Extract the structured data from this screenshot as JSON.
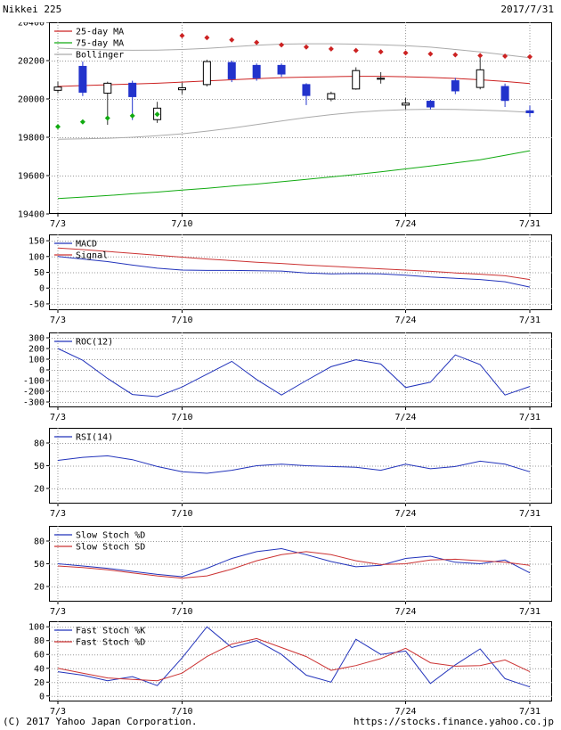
{
  "header": {
    "title": "Nikkei 225",
    "date": "2017/7/31"
  },
  "footer": {
    "copyright": "(C) 2017 Yahoo Japan Corporation.",
    "url": "https://stocks.finance.yahoo.co.jp"
  },
  "colors": {
    "up_candle": "#ffffff",
    "down_candle": "#2233cc",
    "blue_line": "#2233bb",
    "red_line": "#cc3333",
    "ma25": "#cc2222",
    "ma75": "#11aa11",
    "bollinger": "#aaaaaa",
    "grid": "#999999"
  },
  "chart_data": [
    {
      "type": "candlestick",
      "name": "price",
      "ylim": [
        19400,
        20400
      ],
      "yticks": [
        20400,
        20200,
        20000,
        19800,
        19600,
        19400
      ],
      "x_tick_labels": [
        "7/3",
        "7/10",
        "7/24",
        "7/31"
      ],
      "x_tick_days": [
        0,
        5,
        14,
        19
      ],
      "dates": [
        "7/3",
        "7/4",
        "7/5",
        "7/6",
        "7/7",
        "7/10",
        "7/11",
        "7/12",
        "7/13",
        "7/14",
        "7/18",
        "7/19",
        "7/20",
        "7/21",
        "7/24",
        "7/25",
        "7/26",
        "7/27",
        "7/28",
        "7/31"
      ],
      "down_color": "#2233cc",
      "up_color": "#ffffff",
      "ohlc": [
        [
          20045,
          20090,
          20030,
          20062
        ],
        [
          20170,
          20195,
          20015,
          20035
        ],
        [
          20030,
          20090,
          19865,
          20082
        ],
        [
          20082,
          20095,
          19890,
          20012
        ],
        [
          19892,
          19985,
          19875,
          19952
        ],
        [
          20048,
          20085,
          20025,
          20058
        ],
        [
          20075,
          20205,
          20065,
          20195
        ],
        [
          20190,
          20200,
          20088,
          20105
        ],
        [
          20175,
          20185,
          20095,
          20110
        ],
        [
          20175,
          20185,
          20115,
          20130
        ],
        [
          20075,
          20082,
          19968,
          20018
        ],
        [
          20000,
          20038,
          19988,
          20028
        ],
        [
          20052,
          20165,
          20048,
          20148
        ],
        [
          20103,
          20140,
          20080,
          20108
        ],
        [
          19968,
          20005,
          19945,
          19978
        ],
        [
          19988,
          19995,
          19945,
          19958
        ],
        [
          20095,
          20110,
          20025,
          20042
        ],
        [
          20060,
          20215,
          20050,
          20152
        ],
        [
          20065,
          20080,
          19958,
          19992
        ],
        [
          19938,
          19965,
          19905,
          19928
        ]
      ],
      "series": [
        {
          "name": "25-day MA",
          "color": "#cc2222",
          "values": [
            20065,
            20070,
            20074,
            20078,
            20082,
            20088,
            20094,
            20100,
            20106,
            20111,
            20114,
            20116,
            20118,
            20118,
            20116,
            20112,
            20107,
            20100,
            20091,
            20080
          ]
        },
        {
          "name": "75-day MA",
          "color": "#11aa11",
          "values": [
            19480,
            19488,
            19496,
            19505,
            19514,
            19524,
            19534,
            19545,
            19556,
            19568,
            19580,
            19593,
            19606,
            19620,
            19635,
            19650,
            19666,
            19683,
            19706,
            19730
          ]
        },
        {
          "name": "Bollinger",
          "color": "#aaaaaa",
          "upper": [
            20265,
            20260,
            20256,
            20254,
            20255,
            20258,
            20264,
            20272,
            20280,
            20286,
            20288,
            20288,
            20286,
            20283,
            20278,
            20270,
            20258,
            20245,
            20230,
            20215
          ],
          "lower": [
            19790,
            19792,
            19795,
            19800,
            19808,
            19818,
            19832,
            19848,
            19866,
            19885,
            19903,
            19918,
            19930,
            19939,
            19944,
            19946,
            19945,
            19942,
            19937,
            19930
          ]
        }
      ],
      "psar": {
        "up": {
          "start_day": 0,
          "color": "#11aa11",
          "values": [
            19855,
            19880,
            19900,
            19912,
            19920
          ]
        },
        "down": {
          "start_day": 5,
          "color": "#cc2222",
          "values": [
            20330,
            20320,
            20308,
            20295,
            20282,
            20271,
            20261,
            20253,
            20246,
            20240,
            20235,
            20230,
            20226,
            20223,
            20220
          ]
        }
      }
    },
    {
      "type": "line",
      "name": "macd",
      "ylim": [
        -70,
        170
      ],
      "yticks": [
        150,
        100,
        50,
        0,
        -50
      ],
      "x_tick_labels": [
        "7/3",
        "7/10",
        "7/24",
        "7/31"
      ],
      "x_tick_days": [
        0,
        5,
        14,
        19
      ],
      "series": [
        {
          "name": "MACD",
          "color": "#2233bb",
          "values": [
            100,
            92,
            84,
            73,
            63,
            57,
            56,
            56,
            55,
            54,
            48,
            45,
            46,
            45,
            41,
            35,
            31,
            27,
            20,
            3
          ]
        },
        {
          "name": "Signal",
          "color": "#cc3333",
          "values": [
            127,
            122,
            116,
            110,
            104,
            98,
            92,
            87,
            82,
            78,
            73,
            69,
            65,
            61,
            57,
            53,
            48,
            44,
            39,
            27
          ]
        }
      ]
    },
    {
      "type": "line",
      "name": "roc",
      "ylim": [
        -350,
        350
      ],
      "yticks": [
        300,
        200,
        100,
        0,
        -100,
        -200,
        -300
      ],
      "x_tick_labels": [
        "7/3",
        "7/10",
        "7/24",
        "7/31"
      ],
      "x_tick_days": [
        0,
        5,
        14,
        19
      ],
      "series": [
        {
          "name": "ROC(12)",
          "color": "#2233bb",
          "values": [
            200,
            90,
            -80,
            -230,
            -250,
            -160,
            -40,
            80,
            -90,
            -235,
            -100,
            30,
            95,
            55,
            -165,
            -115,
            140,
            50,
            -235,
            -155
          ]
        }
      ]
    },
    {
      "type": "line",
      "name": "rsi",
      "ylim": [
        0,
        100
      ],
      "yticks": [
        80,
        50,
        20
      ],
      "x_tick_labels": [
        "7/3",
        "7/10",
        "7/24",
        "7/31"
      ],
      "x_tick_days": [
        0,
        5,
        14,
        19
      ],
      "series": [
        {
          "name": "RSI(14)",
          "color": "#2233bb",
          "values": [
            57,
            61,
            63,
            58,
            49,
            42,
            40,
            44,
            50,
            52,
            50,
            49,
            48,
            44,
            52,
            46,
            49,
            56,
            52,
            42
          ]
        }
      ]
    },
    {
      "type": "line",
      "name": "slow_stoch",
      "ylim": [
        0,
        100
      ],
      "yticks": [
        80,
        50,
        20
      ],
      "x_tick_labels": [
        "7/3",
        "7/10",
        "7/24",
        "7/31"
      ],
      "x_tick_days": [
        0,
        5,
        14,
        19
      ],
      "series": [
        {
          "name": "Slow Stoch %D",
          "color": "#2233bb",
          "values": [
            50,
            47,
            44,
            40,
            36,
            33,
            44,
            57,
            66,
            70,
            62,
            53,
            46,
            48,
            57,
            60,
            52,
            50,
            55,
            38
          ]
        },
        {
          "name": "Slow Stoch SD",
          "color": "#cc3333",
          "values": [
            47,
            45,
            42,
            38,
            34,
            31,
            34,
            43,
            54,
            62,
            66,
            62,
            54,
            49,
            50,
            55,
            56,
            54,
            52,
            48
          ]
        }
      ]
    },
    {
      "type": "line",
      "name": "fast_stoch",
      "ylim": [
        -8,
        108
      ],
      "yticks": [
        100,
        80,
        60,
        40,
        20,
        0
      ],
      "x_tick_labels": [
        "7/3",
        "7/10",
        "7/24",
        "7/31"
      ],
      "x_tick_days": [
        0,
        5,
        14,
        19
      ],
      "series": [
        {
          "name": "Fast Stoch %K",
          "color": "#2233bb",
          "values": [
            35,
            30,
            22,
            28,
            15,
            55,
            100,
            70,
            80,
            60,
            30,
            20,
            82,
            60,
            65,
            18,
            45,
            68,
            25,
            13
          ]
        },
        {
          "name": "Fast Stoch %D",
          "color": "#cc3333",
          "values": [
            40,
            33,
            26,
            24,
            22,
            33,
            57,
            75,
            83,
            70,
            57,
            37,
            44,
            54,
            69,
            48,
            43,
            44,
            52,
            35
          ]
        }
      ]
    }
  ]
}
